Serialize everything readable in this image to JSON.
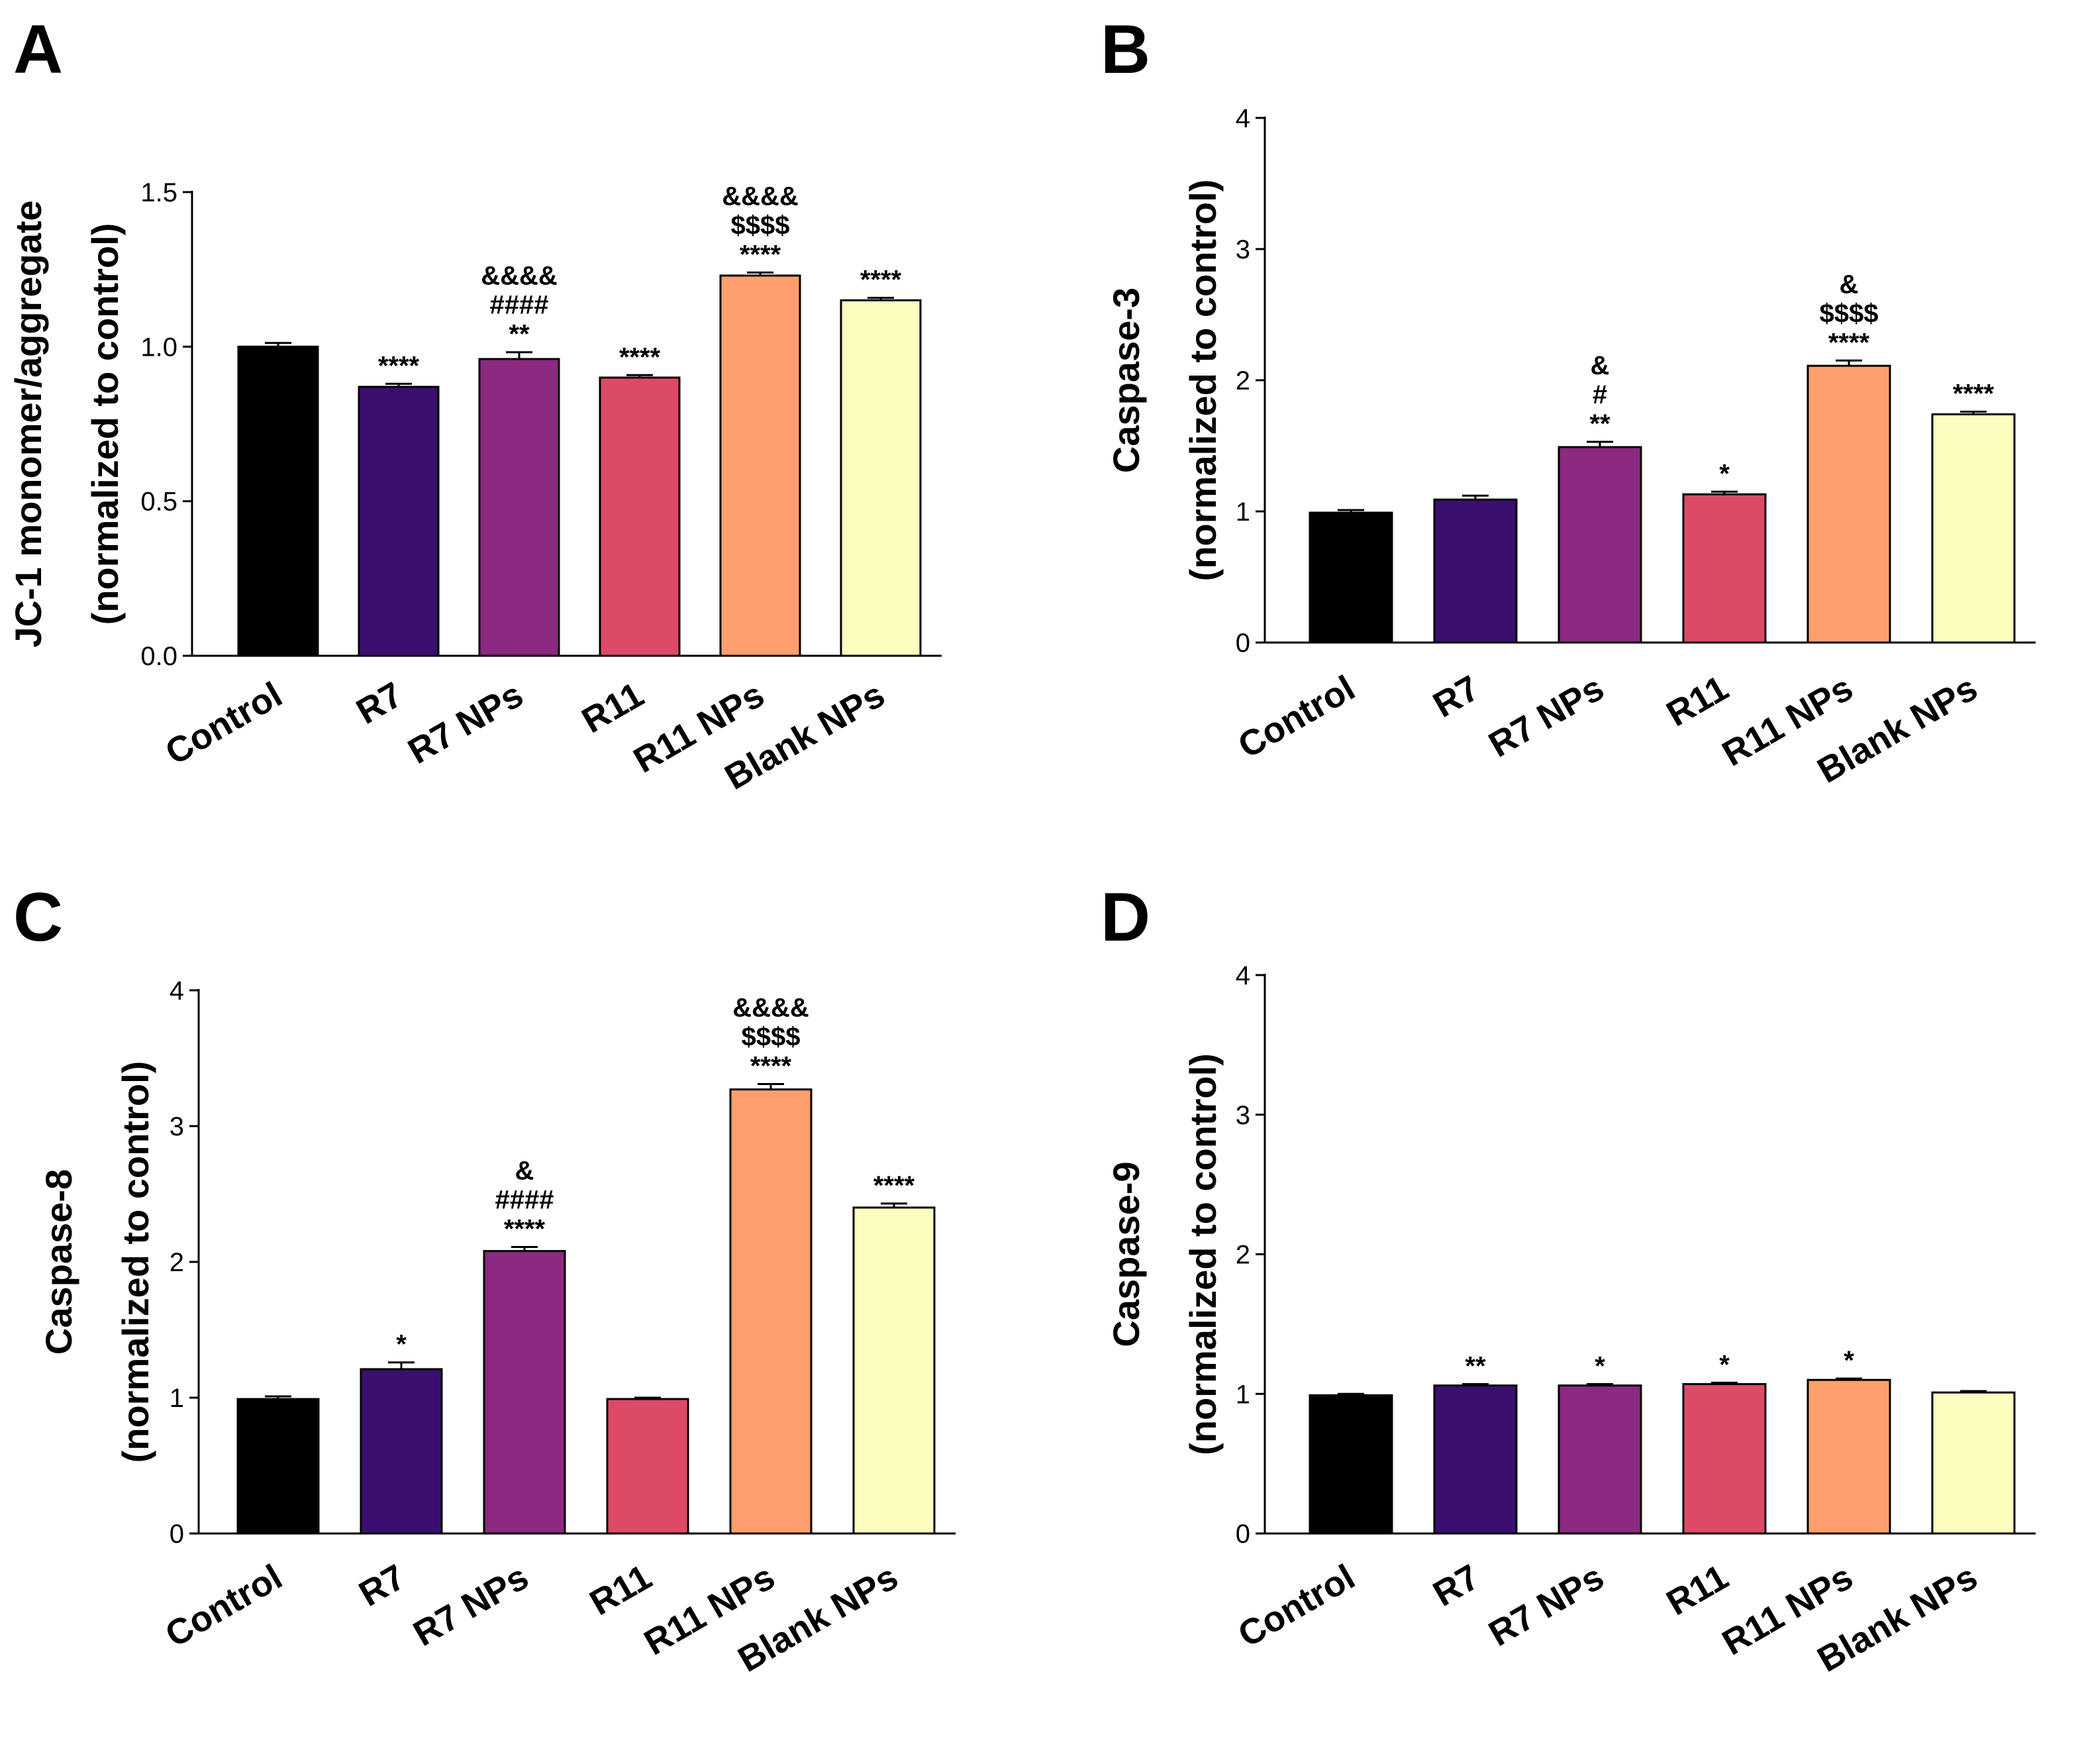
{
  "figure": {
    "panel_letters": [
      "A",
      "B",
      "C",
      "D"
    ]
  },
  "chart_data": [
    {
      "panel": "A",
      "type": "bar",
      "categories": [
        "Control",
        "R7",
        "R7 NPs",
        "R11",
        "R11 NPs",
        "Blank NPs"
      ],
      "colors": [
        "#000000",
        "#3b0f6f",
        "#8c2980",
        "#dd4a68",
        "#fe9f6d",
        "#fcfdbf"
      ],
      "values": [
        1.0,
        0.87,
        0.96,
        0.9,
        1.23,
        1.15
      ],
      "errors": [
        0.012,
        0.01,
        0.022,
        0.008,
        0.01,
        0.008
      ],
      "ylabel_lines": [
        "JC-1 monomer/aggregate",
        "(normalized to control)"
      ],
      "ylim": [
        0,
        1.5
      ],
      "yticks": [
        0.0,
        0.5,
        1.0,
        1.5
      ],
      "ytick_labels": [
        "0.0",
        "0.5",
        "1.0",
        "1.5"
      ],
      "annotations": [
        [],
        [
          "****"
        ],
        [
          "**",
          "####",
          "&&&&"
        ],
        [
          "****"
        ],
        [
          "****",
          "$$$$",
          "&&&&"
        ],
        [
          "****"
        ]
      ]
    },
    {
      "panel": "B",
      "type": "bar",
      "categories": [
        "Control",
        "R7",
        "R7 NPs",
        "R11",
        "R11 NPs",
        "Blank NPs"
      ],
      "colors": [
        "#000000",
        "#3b0f6f",
        "#8c2980",
        "#dd4a68",
        "#fe9f6d",
        "#fcfdbf"
      ],
      "values": [
        0.99,
        1.09,
        1.49,
        1.13,
        2.11,
        1.74
      ],
      "errors": [
        0.02,
        0.03,
        0.04,
        0.02,
        0.04,
        0.02
      ],
      "ylabel_lines": [
        "Caspase-3",
        "(normalized to control)"
      ],
      "ylim": [
        0,
        4
      ],
      "yticks": [
        0,
        1,
        2,
        3,
        4
      ],
      "ytick_labels": [
        "0",
        "1",
        "2",
        "3",
        "4"
      ],
      "annotations": [
        [],
        [],
        [
          "**",
          "#",
          "&"
        ],
        [
          "*"
        ],
        [
          "****",
          "$$$$",
          "&"
        ],
        [
          "****"
        ]
      ]
    },
    {
      "panel": "C",
      "type": "bar",
      "categories": [
        "Control",
        "R7",
        "R7 NPs",
        "R11",
        "R11 NPs",
        "Blank NPs"
      ],
      "colors": [
        "#000000",
        "#3b0f6f",
        "#8c2980",
        "#dd4a68",
        "#fe9f6d",
        "#fcfdbf"
      ],
      "values": [
        0.99,
        1.21,
        2.08,
        0.99,
        3.27,
        2.4
      ],
      "errors": [
        0.02,
        0.05,
        0.03,
        0.01,
        0.04,
        0.03
      ],
      "ylabel_lines": [
        "Caspase-8",
        "(normalized to control)"
      ],
      "ylim": [
        0,
        4
      ],
      "yticks": [
        0,
        1,
        2,
        3,
        4
      ],
      "ytick_labels": [
        "0",
        "1",
        "2",
        "3",
        "4"
      ],
      "annotations": [
        [],
        [
          "*"
        ],
        [
          "****",
          "####",
          "&"
        ],
        [],
        [
          "****",
          "$$$$",
          "&&&&"
        ],
        [
          "****"
        ]
      ]
    },
    {
      "panel": "D",
      "type": "bar",
      "categories": [
        "Control",
        "R7",
        "R7 NPs",
        "R11",
        "R11 NPs",
        "Blank NPs"
      ],
      "colors": [
        "#000000",
        "#3b0f6f",
        "#8c2980",
        "#dd4a68",
        "#fe9f6d",
        "#fcfdbf"
      ],
      "values": [
        0.99,
        1.06,
        1.06,
        1.07,
        1.1,
        1.01
      ],
      "errors": [
        0.01,
        0.01,
        0.01,
        0.01,
        0.01,
        0.01
      ],
      "ylabel_lines": [
        "Caspase-9",
        "(normalized to control)"
      ],
      "ylim": [
        0,
        4
      ],
      "yticks": [
        0,
        1,
        2,
        3,
        4
      ],
      "ytick_labels": [
        "0",
        "1",
        "2",
        "3",
        "4"
      ],
      "annotations": [
        [],
        [
          "**"
        ],
        [
          "*"
        ],
        [
          "*"
        ],
        [
          "*"
        ],
        []
      ]
    }
  ]
}
